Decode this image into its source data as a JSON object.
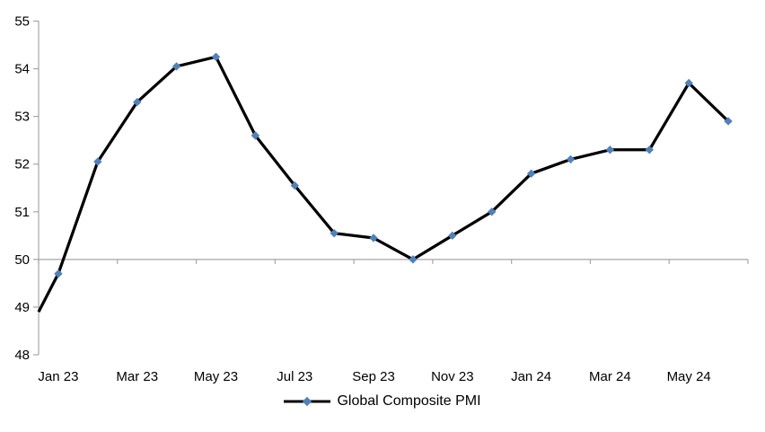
{
  "chart_data": {
    "type": "line",
    "title": "",
    "x": [
      "Jan 23",
      "Feb 23",
      "Mar 23",
      "Apr 23",
      "May 23",
      "Jun 23",
      "Jul 23",
      "Aug 23",
      "Sep 23",
      "Oct 23",
      "Nov 23",
      "Dec 23",
      "Jan 24",
      "Feb 24",
      "Mar 24",
      "Apr 24",
      "May 24",
      "Jun 24"
    ],
    "series": [
      {
        "name": "Global Composite PMI",
        "values": [
          49.7,
          52.05,
          53.3,
          54.05,
          54.25,
          52.6,
          51.55,
          50.55,
          50.45,
          50.0,
          50.5,
          51.0,
          51.8,
          52.1,
          52.3,
          52.3,
          53.7,
          52.9
        ],
        "line_color": "#000000",
        "marker": "diamond",
        "marker_color": "#4F81BD"
      }
    ],
    "edge_start_value": 48.9,
    "ylim": [
      48,
      55
    ],
    "y_ticks": [
      48,
      49,
      50,
      51,
      52,
      53,
      54,
      55
    ],
    "x_tick_labels": [
      "Jan 23",
      "Mar 23",
      "May 23",
      "Jul 23",
      "Sep 23",
      "Nov 23",
      "Jan 24",
      "Mar 24",
      "May 24"
    ],
    "x_label_interval": 2,
    "baseline_value": 50,
    "axis_color": "#A6A6A6",
    "text_color": "#000000",
    "background": "#FFFFFF",
    "legend_position": "bottom-center",
    "grid": "off"
  }
}
